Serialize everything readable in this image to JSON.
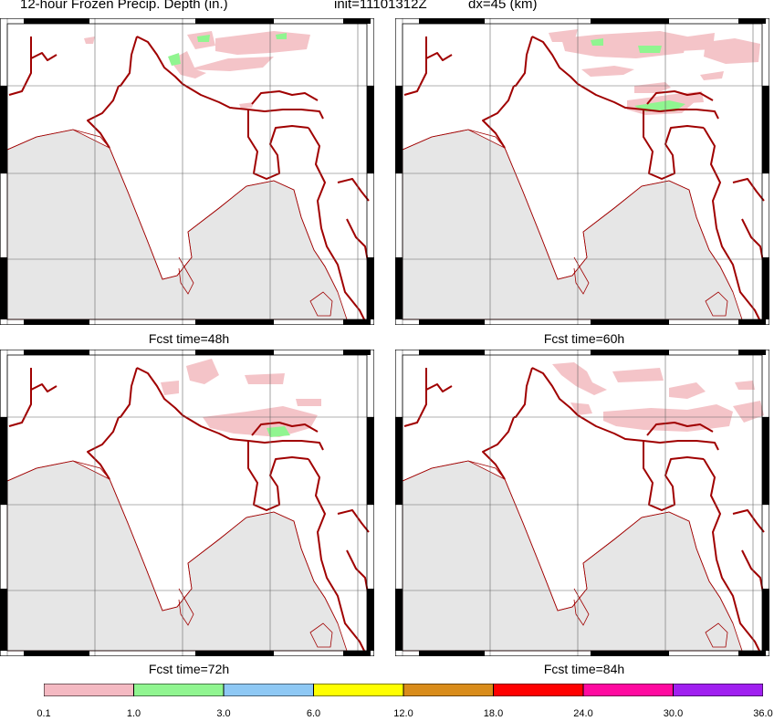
{
  "header": {
    "title": "12-hour Frozen Precip. Depth (in.)",
    "init": "init=11101312Z",
    "dx": "dx=45 (km)"
  },
  "panels": [
    {
      "caption": "Fcst time=48h"
    },
    {
      "caption": "Fcst time=60h"
    },
    {
      "caption": "Fcst time=72h"
    },
    {
      "caption": "Fcst time=84h"
    }
  ],
  "colorbar": {
    "labels": [
      "0.1",
      "1.0",
      "3.0",
      "6.0",
      "12.0",
      "18.0",
      "24.0",
      "30.0",
      "36.0"
    ],
    "colors": [
      "#f4b9c2",
      "#90f590",
      "#8ec8f4",
      "#ffff00",
      "#d98c1a",
      "#ff0000",
      "#ff0aa0",
      "#a020f0"
    ]
  },
  "colors": {
    "land": "#ffffff",
    "ocean": "#e6e6e6",
    "border": "#a00000",
    "snow_light": "#f4c4c8",
    "snow_moderate": "#90f590"
  }
}
